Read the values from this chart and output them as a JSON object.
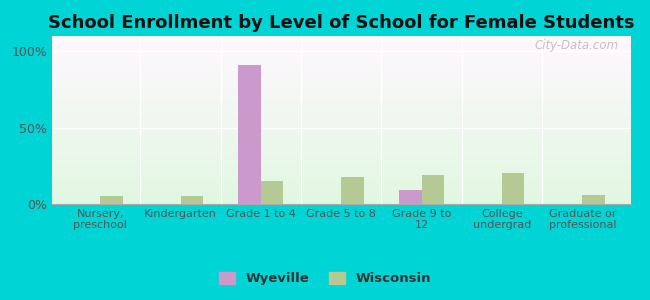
{
  "title": "School Enrollment by Level of School for Female Students",
  "categories": [
    "Nursery,\npreschool",
    "Kindergarten",
    "Grade 1 to 4",
    "Grade 5 to 8",
    "Grade 9 to\n12",
    "College\nundergrad",
    "Graduate or\nprofessional"
  ],
  "wyeville": [
    0.0,
    0.0,
    90.9,
    0.0,
    9.1,
    0.0,
    0.0
  ],
  "wisconsin": [
    5.5,
    5.5,
    15.0,
    17.5,
    19.0,
    20.0,
    6.0
  ],
  "wyeville_color": "#cc99cc",
  "wisconsin_color": "#b5c994",
  "background_outer": "#00d4d4",
  "ylim": [
    0,
    110
  ],
  "yticks": [
    0,
    50,
    100
  ],
  "ytick_labels": [
    "0%",
    "50%",
    "100%"
  ],
  "title_fontsize": 13,
  "bar_width": 0.28,
  "watermark": "City-Data.com"
}
